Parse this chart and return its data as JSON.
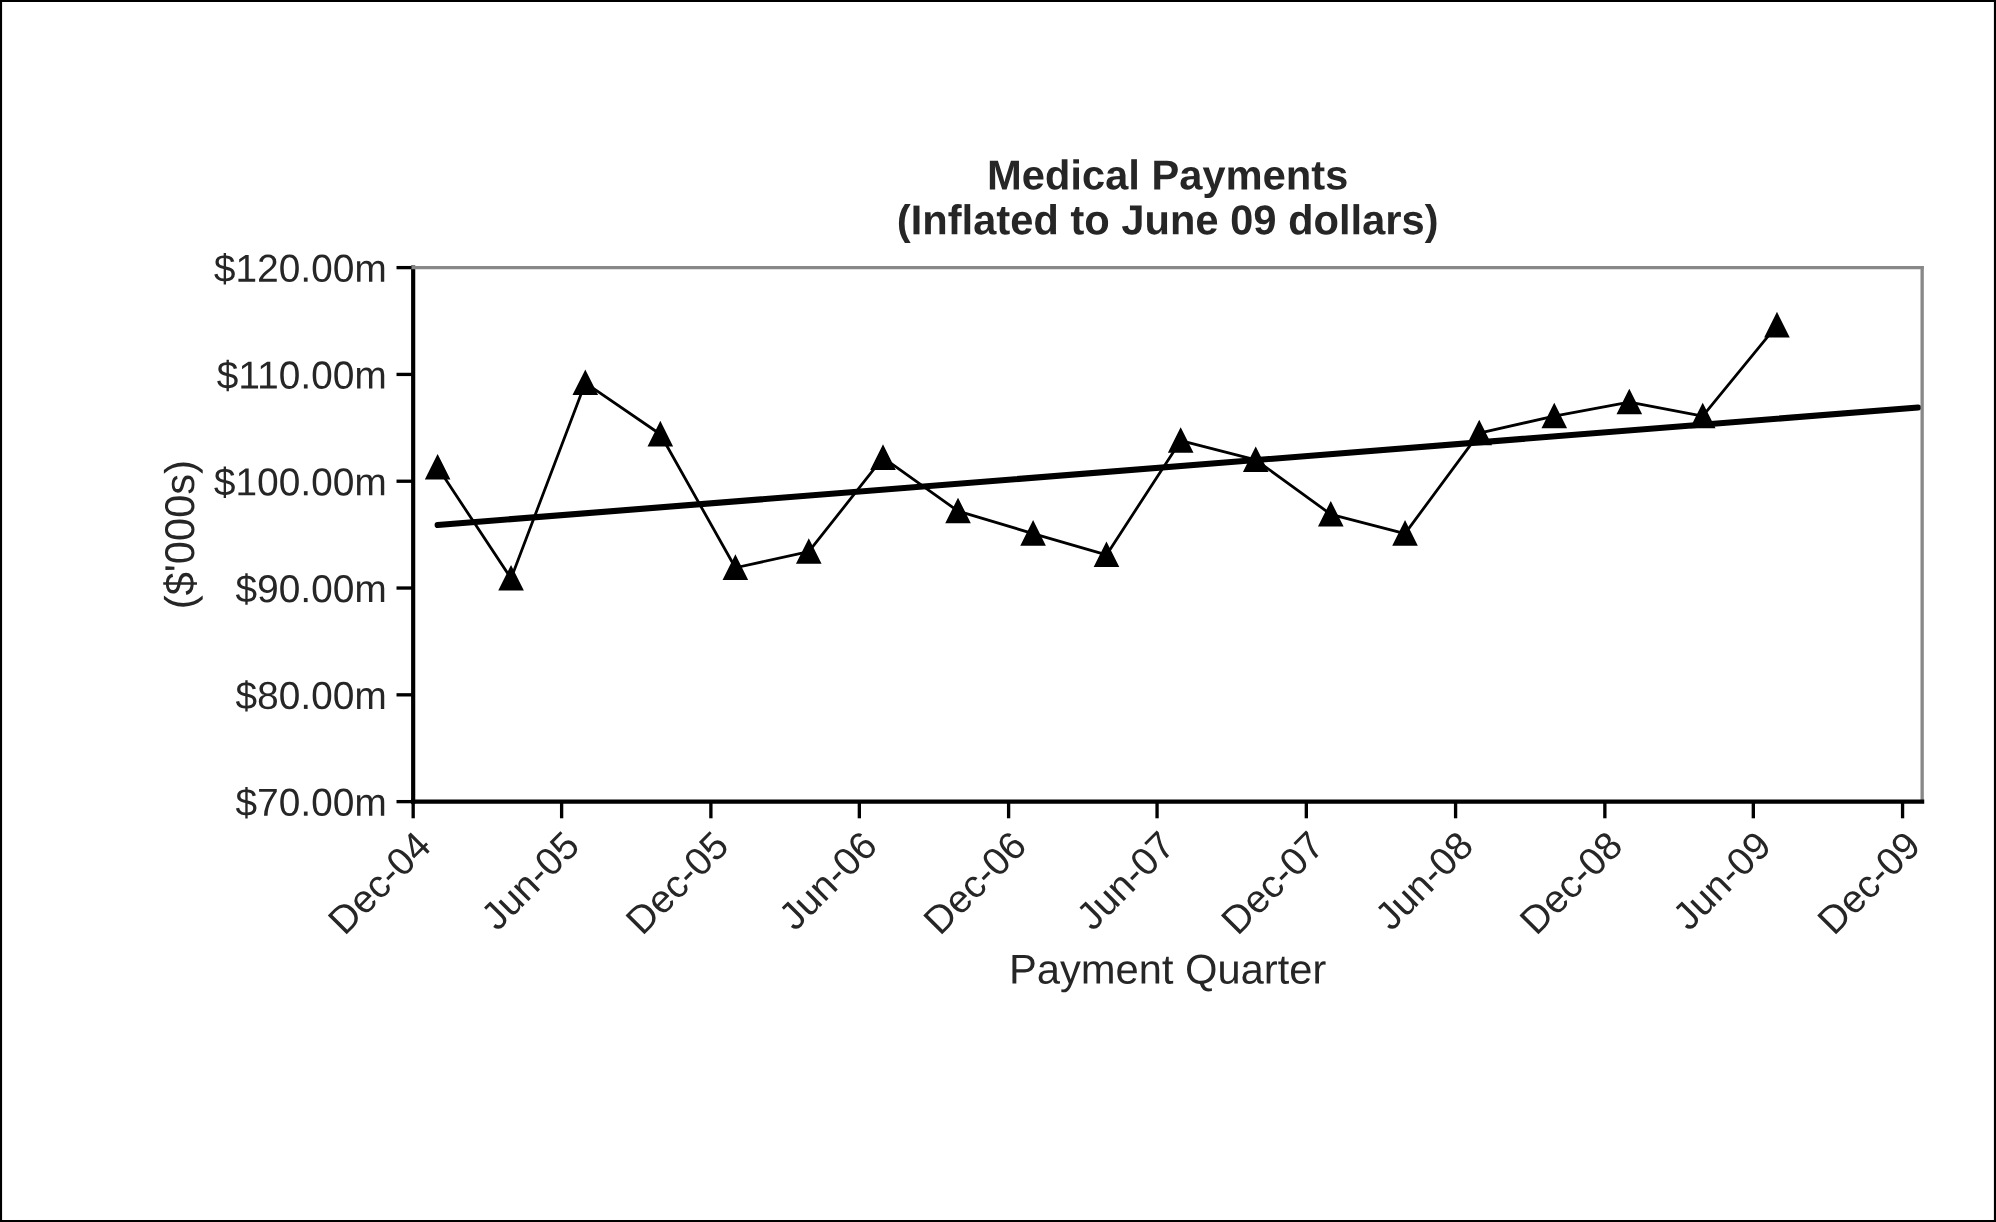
{
  "chart_data": {
    "type": "line",
    "title": "Medical Payments\n(Inflated to June 09 dollars)",
    "xlabel": "Payment Quarter",
    "ylabel": "($'000s)",
    "series": [
      {
        "color": "#000000",
        "marker": "triangle",
        "x": [
          "2004-12-31",
          "2005-03-31",
          "2005-06-30",
          "2005-09-30",
          "2005-12-31",
          "2006-03-31",
          "2006-06-30",
          "2006-09-30",
          "2006-12-31",
          "2007-03-31",
          "2007-06-30",
          "2007-09-30",
          "2007-12-31",
          "2008-03-31",
          "2008-06-30",
          "2008-09-30",
          "2008-12-31",
          "2009-03-31",
          "2009-06-30"
        ],
        "values": [
          101.3,
          90.9,
          109.2,
          104.4,
          91.9,
          93.4,
          102.2,
          97.2,
          95.1,
          93.1,
          103.8,
          102.0,
          96.9,
          95.1,
          104.5,
          106.1,
          107.4,
          106.1,
          114.6
        ]
      },
      {
        "color": "#000000",
        "marker": "none",
        "x": [
          "2004-12-31",
          "2009-12-20"
        ],
        "values": [
          95.9,
          106.9
        ]
      }
    ],
    "xlim": [
      "2004-12-01",
      "2009-12-25"
    ],
    "xticks": [
      {
        "value": "2004-12-01",
        "label": "Dec-04"
      },
      {
        "value": "2005-06-01",
        "label": "Jun-05"
      },
      {
        "value": "2005-12-01",
        "label": "Dec-05"
      },
      {
        "value": "2006-06-01",
        "label": "Jun-06"
      },
      {
        "value": "2006-12-01",
        "label": "Dec-06"
      },
      {
        "value": "2007-06-01",
        "label": "Jun-07"
      },
      {
        "value": "2007-12-01",
        "label": "Dec-07"
      },
      {
        "value": "2008-06-01",
        "label": "Jun-08"
      },
      {
        "value": "2008-12-01",
        "label": "Dec-08"
      },
      {
        "value": "2009-06-01",
        "label": "Jun-09"
      },
      {
        "value": "2009-12-01",
        "label": "Dec-09"
      }
    ],
    "ylim": [
      70,
      120
    ],
    "yticks": [
      {
        "value": 70,
        "label": "$70.00m"
      },
      {
        "value": 80,
        "label": "$80.00m"
      },
      {
        "value": 90,
        "label": "$90.00m"
      },
      {
        "value": 100,
        "label": "$100.00m"
      },
      {
        "value": 110,
        "label": "$110.00m"
      },
      {
        "value": 120,
        "label": "$120.00m"
      }
    ],
    "grid": false,
    "legend": false
  }
}
